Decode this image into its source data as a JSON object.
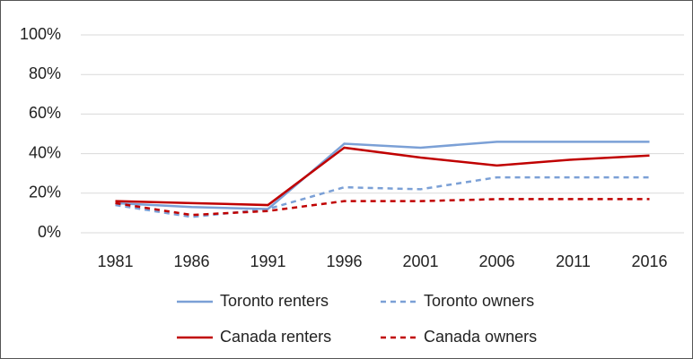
{
  "chart_data": {
    "type": "line",
    "categories": [
      "1981",
      "1986",
      "1991",
      "1996",
      "2001",
      "2006",
      "2011",
      "2016"
    ],
    "series": [
      {
        "name": "Toronto renters",
        "color": "#7ba0d6",
        "dashed": false,
        "values": [
          15,
          13,
          12,
          45,
          43,
          46,
          46,
          46
        ]
      },
      {
        "name": "Toronto owners",
        "color": "#7ba0d6",
        "dashed": true,
        "values": [
          14,
          8,
          12,
          23,
          22,
          28,
          28,
          28
        ]
      },
      {
        "name": "Canada renters",
        "color": "#c00000",
        "dashed": false,
        "values": [
          16,
          15,
          14,
          43,
          38,
          34,
          37,
          39
        ]
      },
      {
        "name": "Canada owners",
        "color": "#c00000",
        "dashed": true,
        "values": [
          15,
          9,
          11,
          16,
          16,
          17,
          17,
          17
        ]
      }
    ],
    "ylim": [
      0,
      100
    ],
    "yticks": [
      {
        "value": 0,
        "label": "0%"
      },
      {
        "value": 20,
        "label": "20%"
      },
      {
        "value": 40,
        "label": "40%"
      },
      {
        "value": 60,
        "label": "60%"
      },
      {
        "value": 80,
        "label": "80%"
      },
      {
        "value": 100,
        "label": "100%"
      }
    ],
    "grid": true,
    "legend": "bottom"
  }
}
